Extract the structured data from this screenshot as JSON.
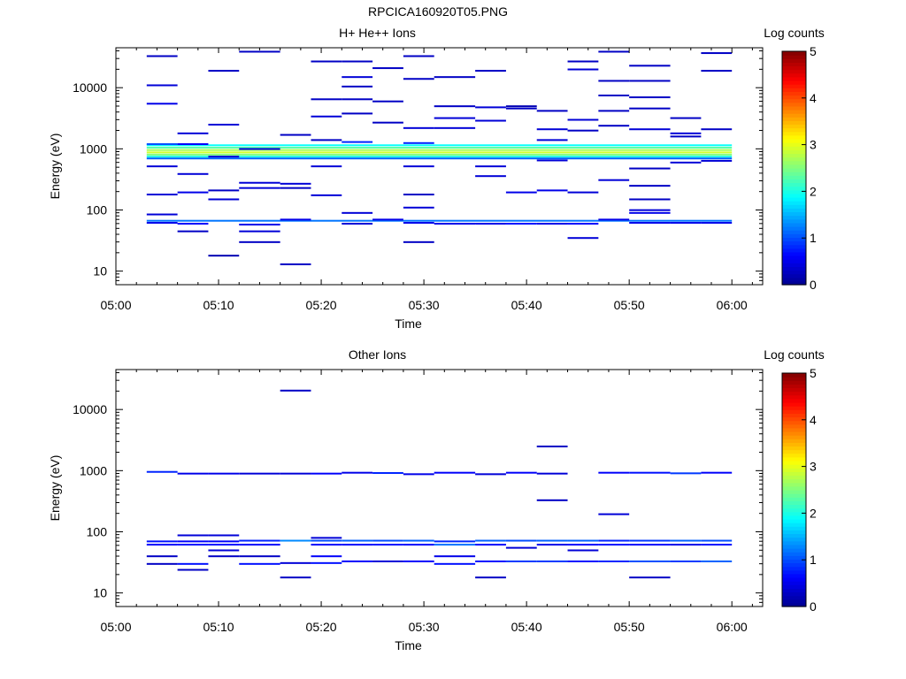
{
  "figure_title": "RPCICA160920T05.PNG",
  "colorbar": {
    "label": "Log counts",
    "ticks": [
      "0",
      "1",
      "2",
      "3",
      "4",
      "5"
    ],
    "colormap": [
      "#00008f",
      "#0000ff",
      "#00ffff",
      "#ffff00",
      "#ff0000",
      "#800000"
    ]
  },
  "chart_data": [
    {
      "type": "heatmap",
      "title": "H+ He++ Ions",
      "xlabel": "Time",
      "ylabel": "Energy (eV)",
      "x_range_minutes": [
        0,
        63
      ],
      "x_ticks": [
        "05:00",
        "05:10",
        "05:20",
        "05:30",
        "05:40",
        "05:50",
        "06:00"
      ],
      "y_scale": "log",
      "y_range": [
        6,
        45000
      ],
      "y_ticks": [
        "10",
        "100",
        "1000",
        "10000"
      ],
      "clim": [
        0,
        5
      ],
      "cells": [
        [
          3,
          6,
          33000,
          0.3
        ],
        [
          3,
          6,
          11000,
          0.4
        ],
        [
          3,
          6,
          5500,
          0.5
        ],
        [
          3,
          6,
          1200,
          1.0
        ],
        [
          3,
          6,
          520,
          0.4
        ],
        [
          3,
          6,
          180,
          0.4
        ],
        [
          3,
          6,
          85,
          0.4
        ],
        [
          3,
          6,
          62,
          0.5
        ],
        [
          6,
          9,
          1800,
          0.4
        ],
        [
          6,
          9,
          1200,
          0.6
        ],
        [
          6,
          9,
          390,
          0.4
        ],
        [
          6,
          9,
          195,
          0.5
        ],
        [
          6,
          9,
          60,
          0.6
        ],
        [
          6,
          9,
          45,
          0.3
        ],
        [
          9,
          12,
          19000,
          0.3
        ],
        [
          9,
          12,
          2500,
          0.4
        ],
        [
          9,
          12,
          750,
          0.4
        ],
        [
          9,
          12,
          210,
          0.3
        ],
        [
          9,
          12,
          150,
          0.4
        ],
        [
          9,
          12,
          18,
          0.2
        ],
        [
          12,
          16,
          39000,
          0.3
        ],
        [
          12,
          16,
          1000,
          0.4
        ],
        [
          12,
          16,
          280,
          0.4
        ],
        [
          12,
          16,
          230,
          0.4
        ],
        [
          12,
          16,
          58,
          0.5
        ],
        [
          12,
          16,
          45,
          0.4
        ],
        [
          12,
          16,
          30,
          0.3
        ],
        [
          16,
          19,
          1700,
          0.3
        ],
        [
          16,
          19,
          270,
          0.4
        ],
        [
          16,
          19,
          230,
          0.3
        ],
        [
          16,
          19,
          70,
          0.5
        ],
        [
          16,
          19,
          13,
          0.3
        ],
        [
          19,
          22,
          27000,
          0.3
        ],
        [
          19,
          22,
          6500,
          0.3
        ],
        [
          19,
          22,
          3400,
          0.4
        ],
        [
          19,
          22,
          1400,
          0.3
        ],
        [
          19,
          22,
          520,
          0.4
        ],
        [
          19,
          22,
          175,
          0.4
        ],
        [
          22,
          25,
          27000,
          0.3
        ],
        [
          22,
          25,
          15000,
          0.4
        ],
        [
          22,
          25,
          10500,
          0.3
        ],
        [
          22,
          25,
          6500,
          0.3
        ],
        [
          22,
          25,
          3800,
          0.3
        ],
        [
          22,
          25,
          1300,
          0.8
        ],
        [
          22,
          25,
          90,
          0.4
        ],
        [
          22,
          25,
          60,
          0.4
        ],
        [
          25,
          28,
          21000,
          0.3
        ],
        [
          25,
          28,
          6000,
          0.3
        ],
        [
          25,
          28,
          2700,
          0.3
        ],
        [
          25,
          28,
          70,
          0.5
        ],
        [
          28,
          31,
          33000,
          0.3
        ],
        [
          28,
          31,
          14000,
          0.3
        ],
        [
          28,
          31,
          2200,
          0.4
        ],
        [
          28,
          31,
          1250,
          0.8
        ],
        [
          28,
          31,
          520,
          0.4
        ],
        [
          28,
          31,
          180,
          0.3
        ],
        [
          28,
          31,
          110,
          0.4
        ],
        [
          28,
          31,
          62,
          0.5
        ],
        [
          28,
          31,
          30,
          0.3
        ],
        [
          31,
          35,
          15000,
          0.3
        ],
        [
          31,
          35,
          5000,
          0.3
        ],
        [
          31,
          35,
          3200,
          0.4
        ],
        [
          31,
          35,
          2200,
          0.4
        ],
        [
          31,
          35,
          60,
          0.5
        ],
        [
          35,
          38,
          19000,
          0.3
        ],
        [
          35,
          38,
          4800,
          0.4
        ],
        [
          35,
          38,
          2900,
          0.4
        ],
        [
          35,
          38,
          520,
          0.4
        ],
        [
          35,
          38,
          360,
          0.4
        ],
        [
          35,
          38,
          60,
          0.5
        ],
        [
          38,
          41,
          5000,
          0.2
        ],
        [
          38,
          41,
          4600,
          0.3
        ],
        [
          38,
          41,
          195,
          0.5
        ],
        [
          38,
          41,
          60,
          0.7
        ],
        [
          41,
          44,
          4200,
          0.3
        ],
        [
          41,
          44,
          2100,
          0.4
        ],
        [
          41,
          44,
          1400,
          0.4
        ],
        [
          41,
          44,
          650,
          0.4
        ],
        [
          41,
          44,
          210,
          0.5
        ],
        [
          41,
          44,
          60,
          0.5
        ],
        [
          44,
          47,
          27000,
          0.3
        ],
        [
          44,
          47,
          20000,
          0.4
        ],
        [
          44,
          47,
          3000,
          0.4
        ],
        [
          44,
          47,
          2000,
          0.3
        ],
        [
          44,
          47,
          195,
          0.4
        ],
        [
          44,
          47,
          60,
          0.6
        ],
        [
          44,
          47,
          35,
          0.4
        ],
        [
          47,
          50,
          39000,
          0.3
        ],
        [
          47,
          50,
          13000,
          0.3
        ],
        [
          47,
          50,
          7500,
          0.3
        ],
        [
          47,
          50,
          4200,
          0.3
        ],
        [
          47,
          50,
          2400,
          0.3
        ],
        [
          47,
          50,
          310,
          0.4
        ],
        [
          47,
          50,
          70,
          0.5
        ],
        [
          50,
          54,
          23000,
          0.3
        ],
        [
          50,
          54,
          13000,
          0.3
        ],
        [
          50,
          54,
          7000,
          0.3
        ],
        [
          50,
          54,
          4600,
          0.3
        ],
        [
          50,
          54,
          2100,
          0.4
        ],
        [
          50,
          54,
          480,
          0.3
        ],
        [
          50,
          54,
          250,
          0.3
        ],
        [
          50,
          54,
          150,
          0.3
        ],
        [
          50,
          54,
          100,
          0.4
        ],
        [
          50,
          54,
          90,
          0.5
        ],
        [
          50,
          54,
          62,
          0.5
        ],
        [
          54,
          57,
          3200,
          0.3
        ],
        [
          54,
          57,
          1800,
          0.4
        ],
        [
          54,
          57,
          1600,
          0.3
        ],
        [
          54,
          57,
          600,
          0.4
        ],
        [
          54,
          57,
          62,
          0.5
        ],
        [
          57,
          60,
          37000,
          0.3
        ],
        [
          57,
          60,
          19000,
          0.3
        ],
        [
          57,
          60,
          2100,
          0.3
        ],
        [
          57,
          60,
          640,
          0.4
        ],
        [
          57,
          60,
          62,
          0.5
        ]
      ],
      "rows": [
        [
          3,
          60,
          1150,
          1.9
        ],
        [
          3,
          60,
          1050,
          2.3
        ],
        [
          3,
          60,
          960,
          2.7
        ],
        [
          3,
          60,
          880,
          2.9
        ],
        [
          3,
          60,
          810,
          2.5
        ],
        [
          3,
          60,
          750,
          2.0
        ],
        [
          3,
          60,
          700,
          1.1
        ],
        [
          3,
          60,
          67,
          1.2
        ]
      ]
    },
    {
      "type": "heatmap",
      "title": "Other Ions",
      "xlabel": "Time",
      "ylabel": "Energy (eV)",
      "x_range_minutes": [
        0,
        63
      ],
      "x_ticks": [
        "05:00",
        "05:10",
        "05:20",
        "05:30",
        "05:40",
        "05:50",
        "06:00"
      ],
      "y_scale": "log",
      "y_range": [
        6,
        45000
      ],
      "y_ticks": [
        "10",
        "100",
        "1000",
        "10000"
      ],
      "clim": [
        0,
        5
      ],
      "cells": [
        [
          3,
          6,
          960,
          0.8
        ],
        [
          3,
          6,
          70,
          0.7
        ],
        [
          3,
          6,
          62,
          0.6
        ],
        [
          3,
          6,
          40,
          0.3
        ],
        [
          3,
          6,
          30,
          0.3
        ],
        [
          6,
          9,
          900,
          0.5
        ],
        [
          6,
          9,
          88,
          0.4
        ],
        [
          6,
          9,
          70,
          0.6
        ],
        [
          6,
          9,
          62,
          0.7
        ],
        [
          6,
          9,
          30,
          0.7
        ],
        [
          6,
          9,
          24,
          0.3
        ],
        [
          9,
          12,
          900,
          0.5
        ],
        [
          9,
          12,
          88,
          0.4
        ],
        [
          9,
          12,
          70,
          0.6
        ],
        [
          9,
          12,
          62,
          0.7
        ],
        [
          9,
          12,
          50,
          0.4
        ],
        [
          9,
          12,
          40,
          0.3
        ],
        [
          12,
          16,
          900,
          0.4
        ],
        [
          12,
          16,
          72,
          0.8
        ],
        [
          12,
          16,
          62,
          0.6
        ],
        [
          12,
          16,
          40,
          0.3
        ],
        [
          12,
          16,
          30,
          0.7
        ],
        [
          16,
          19,
          20500,
          0.3
        ],
        [
          16,
          19,
          900,
          0.4
        ],
        [
          16,
          19,
          72,
          1.3
        ],
        [
          16,
          19,
          31,
          0.4
        ],
        [
          16,
          19,
          18,
          0.3
        ],
        [
          19,
          22,
          900,
          0.6
        ],
        [
          19,
          22,
          80,
          0.4
        ],
        [
          19,
          22,
          72,
          1.0
        ],
        [
          19,
          22,
          62,
          0.6
        ],
        [
          19,
          22,
          40,
          0.6
        ],
        [
          19,
          22,
          31,
          0.7
        ],
        [
          22,
          25,
          930,
          0.5
        ],
        [
          22,
          25,
          72,
          1.1
        ],
        [
          22,
          25,
          62,
          0.6
        ],
        [
          22,
          25,
          33,
          0.6
        ],
        [
          25,
          28,
          920,
          0.8
        ],
        [
          25,
          28,
          72,
          1.0
        ],
        [
          25,
          28,
          62,
          0.7
        ],
        [
          25,
          28,
          33,
          0.4
        ],
        [
          28,
          31,
          880,
          0.5
        ],
        [
          28,
          31,
          72,
          1.1
        ],
        [
          28,
          31,
          62,
          0.6
        ],
        [
          28,
          31,
          33,
          0.6
        ],
        [
          31,
          35,
          930,
          0.6
        ],
        [
          31,
          35,
          70,
          0.8
        ],
        [
          31,
          35,
          62,
          1.2
        ],
        [
          31,
          35,
          40,
          0.5
        ],
        [
          31,
          35,
          30,
          0.7
        ],
        [
          35,
          38,
          880,
          0.4
        ],
        [
          35,
          38,
          72,
          1.1
        ],
        [
          35,
          38,
          62,
          0.6
        ],
        [
          35,
          38,
          33,
          0.7
        ],
        [
          35,
          38,
          18,
          0.3
        ],
        [
          38,
          41,
          930,
          0.6
        ],
        [
          38,
          41,
          72,
          1.0
        ],
        [
          38,
          41,
          55,
          0.4
        ],
        [
          38,
          41,
          33,
          0.9
        ],
        [
          41,
          44,
          2500,
          0.3
        ],
        [
          41,
          44,
          900,
          0.4
        ],
        [
          41,
          44,
          330,
          0.3
        ],
        [
          41,
          44,
          72,
          1.1
        ],
        [
          41,
          44,
          62,
          0.5
        ],
        [
          41,
          44,
          33,
          0.9
        ],
        [
          44,
          47,
          72,
          1.1
        ],
        [
          44,
          47,
          62,
          0.6
        ],
        [
          44,
          47,
          50,
          0.4
        ],
        [
          44,
          47,
          33,
          0.7
        ],
        [
          47,
          50,
          930,
          0.6
        ],
        [
          47,
          50,
          195,
          0.4
        ],
        [
          47,
          50,
          72,
          0.8
        ],
        [
          47,
          50,
          62,
          0.7
        ],
        [
          47,
          50,
          33,
          0.8
        ],
        [
          50,
          54,
          930,
          0.7
        ],
        [
          50,
          54,
          72,
          0.9
        ],
        [
          50,
          54,
          62,
          0.6
        ],
        [
          50,
          54,
          33,
          1.0
        ],
        [
          50,
          54,
          18,
          0.3
        ],
        [
          54,
          57,
          910,
          0.9
        ],
        [
          54,
          57,
          72,
          1.1
        ],
        [
          54,
          57,
          62,
          0.5
        ],
        [
          54,
          57,
          33,
          0.9
        ],
        [
          57,
          60,
          930,
          0.6
        ],
        [
          57,
          60,
          72,
          1.0
        ],
        [
          57,
          60,
          62,
          0.7
        ],
        [
          57,
          60,
          33,
          1.1
        ]
      ],
      "rows": []
    }
  ]
}
